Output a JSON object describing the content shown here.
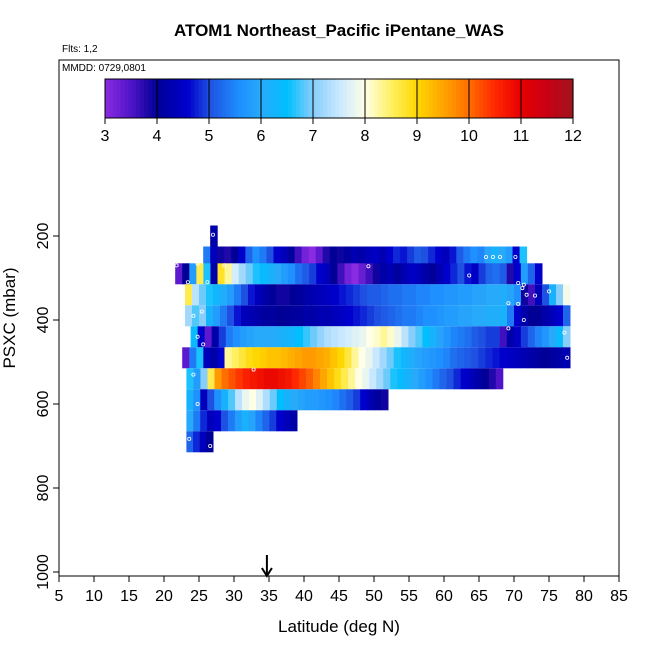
{
  "chart_data": {
    "type": "heatmap",
    "title": "ATOM1 Northeast_Pacific iPentane_WAS",
    "flights_label": "Flts: 1,2",
    "dates_label": "MMDD: 0729,0801",
    "xlabel": "Latitude (deg N)",
    "ylabel": "PSXC (mbar)",
    "xlim": [
      5,
      85
    ],
    "ylim": [
      1000,
      0
    ],
    "x_ticks": [
      5,
      10,
      15,
      20,
      25,
      30,
      35,
      40,
      45,
      50,
      55,
      60,
      65,
      70,
      75,
      80,
      85
    ],
    "y_ticks": [
      200,
      400,
      600,
      800,
      1000
    ],
    "colorbar": {
      "min": 3,
      "max": 12,
      "ticks": [
        3,
        4,
        5,
        6,
        7,
        8,
        9,
        10,
        11,
        12
      ]
    },
    "arrow_latitude": 34.7,
    "layer_height_mbar": 50,
    "rows": [
      {
        "p": 200,
        "x0": 26.6,
        "x1": 27.6,
        "segments": [
          [
            4.2
          ]
        ]
      },
      {
        "p": 250,
        "x0": 25.6,
        "x1": 71.8,
        "segments": [
          [
            5.4,
            4.4,
            3.9,
            3.8,
            4.0,
            4.6,
            5.2,
            5.6,
            5.4,
            5.0,
            4.6,
            4.4,
            4.1,
            3.6,
            3.2,
            3.0,
            3.4,
            3.8,
            4.0,
            3.9,
            4.1,
            4.3,
            4.2,
            4.4,
            4.5,
            4.3,
            4.6,
            4.8,
            4.7,
            4.9,
            5.1,
            5.0,
            4.8,
            4.6,
            4.4,
            4.7,
            5.1,
            5.4,
            5.6,
            5.5,
            5.9,
            6.2,
            6.0,
            5.8,
            4.6,
            6.6
          ]
        ]
      },
      {
        "p": 290,
        "x0": 21.6,
        "x1": 74.0,
        "segments": [
          [
            3.4,
            4.0,
            5.8,
            8.6,
            6.6,
            4.2,
            8.8,
            8.3,
            7.6,
            7.2,
            6.9,
            6.6,
            6.4,
            6.2,
            6.0,
            5.8,
            5.6,
            5.3,
            5.1,
            4.9,
            4.6,
            4.4,
            4.0,
            3.6,
            3.2,
            3.0,
            3.3,
            3.6,
            3.9,
            4.2,
            4.3,
            4.1,
            4.3,
            4.5,
            4.4,
            4.2,
            4.0,
            4.3,
            4.6,
            4.8,
            5.0,
            4.7,
            4.5,
            4.9,
            5.2,
            5.3,
            5.1,
            3.8,
            4.6,
            5.8,
            5.2,
            4.6
          ]
        ]
      },
      {
        "p": 340,
        "x0": 23.0,
        "x1": 78.0,
        "segments": [
          [
            8.6,
            7.4,
            6.9,
            6.6,
            6.3,
            6.1,
            5.8,
            5.4,
            5.0,
            4.7,
            4.4,
            4.2,
            4.0,
            3.9,
            3.9,
            4.0,
            4.1,
            4.2,
            4.3,
            4.4,
            4.5,
            4.6,
            4.7,
            4.8,
            4.9,
            5.0,
            5.1,
            5.1,
            5.2,
            5.3,
            5.3,
            5.4,
            5.4,
            5.5,
            5.5,
            5.6,
            5.6,
            5.7,
            5.7,
            5.8,
            5.8,
            5.9,
            5.9,
            6.0,
            6.0,
            6.1,
            5.9,
            5.6,
            3.9,
            3.6,
            4.4,
            5.0,
            6.2,
            7.0,
            7.9
          ]
        ]
      },
      {
        "p": 390,
        "x0": 23.0,
        "x1": 78.0,
        "segments": [
          [
            7.2,
            6.8,
            7.0,
            6.2,
            5.8,
            5.4,
            5.0,
            4.7,
            4.4,
            4.3,
            4.2,
            4.1,
            4.1,
            4.0,
            4.0,
            4.1,
            4.1,
            4.2,
            4.2,
            4.3,
            4.3,
            4.4,
            4.5,
            4.6,
            4.7,
            4.8,
            4.9,
            5.0,
            5.1,
            5.2,
            5.3,
            5.4,
            5.4,
            5.5,
            5.6,
            5.6,
            5.7,
            5.8,
            5.8,
            5.9,
            5.9,
            6.0,
            6.0,
            6.1,
            6.1,
            6.2,
            5.4,
            4.6,
            4.2,
            4.0,
            4.0,
            4.2,
            4.4,
            4.6,
            5.2
          ]
        ]
      },
      {
        "p": 440,
        "x0": 23.8,
        "x1": 78.0,
        "segments": [
          [
            6.4,
            4.6,
            3.4,
            4.2,
            4.9,
            5.4,
            5.6,
            5.8,
            5.9,
            6.0,
            6.0,
            6.0,
            6.1,
            6.2,
            6.3,
            6.5,
            6.7,
            6.9,
            7.1,
            7.3,
            7.4,
            7.5,
            7.6,
            7.7,
            7.8,
            8.0,
            8.1,
            8.3,
            8.1,
            7.8,
            7.4,
            7.0,
            6.8,
            6.5,
            6.2,
            5.9,
            5.7,
            5.5,
            5.4,
            5.3,
            5.1,
            5.0,
            4.9,
            4.9,
            3.6,
            4.2,
            4.5,
            4.9,
            5.2,
            5.5,
            5.7,
            6.0,
            6.4,
            7.0
          ]
        ]
      },
      {
        "p": 490,
        "x0": 22.6,
        "x1": 78.0,
        "segments": [
          [
            3.4,
            5.4,
            6.6,
            4.4,
            4.2,
            4.6,
            8.3,
            8.5,
            8.7,
            8.9,
            9.0,
            9.1,
            9.2,
            9.2,
            9.3,
            9.4,
            9.5,
            9.6,
            9.6,
            9.5,
            9.4,
            9.2,
            9.0,
            8.7,
            8.3,
            8.0,
            7.8,
            7.5,
            7.2,
            6.9,
            6.6,
            6.3,
            6.1,
            5.9,
            5.8,
            5.7,
            5.6,
            5.5,
            5.3,
            5.2,
            5.1,
            5.0,
            4.9,
            4.8,
            4.7,
            4.6,
            4.5,
            4.4,
            4.3,
            4.2,
            4.1,
            4.0,
            4.1,
            4.2,
            4.3
          ]
        ]
      },
      {
        "p": 540,
        "x0": 23.2,
        "x1": 68.4,
        "segments": [
          [
            6.6,
            5.8,
            7.0,
            8.6,
            9.6,
            10.0,
            10.2,
            10.4,
            10.6,
            10.7,
            10.8,
            10.9,
            10.9,
            10.8,
            10.7,
            10.5,
            10.3,
            10.1,
            9.8,
            9.5,
            9.2,
            8.9,
            8.6,
            8.3,
            8.0,
            7.8,
            7.5,
            7.2,
            6.9,
            6.6,
            6.4,
            6.2,
            6.0,
            5.8,
            5.6,
            5.4,
            5.2,
            5.0,
            4.8,
            4.6,
            4.4,
            4.2,
            4.0,
            3.8,
            3.5
          ]
        ]
      },
      {
        "p": 590,
        "x0": 23.2,
        "x1": 52.0,
        "segments": [
          [
            6.2,
            5.6,
            4.4,
            5.0,
            5.6,
            6.2,
            6.8,
            7.4,
            7.8,
            8.0,
            7.7,
            7.3,
            6.9,
            6.5,
            6.2,
            6.0,
            5.9,
            5.8,
            5.8,
            5.7,
            5.6,
            5.5,
            5.3,
            5.1,
            4.9,
            4.6,
            4.3,
            4.1,
            3.9
          ]
        ]
      },
      {
        "p": 640,
        "x0": 23.2,
        "x1": 39.0,
        "segments": [
          [
            6.0,
            5.4,
            4.8,
            4.4,
            4.6,
            5.0,
            5.4,
            5.8,
            6.2,
            5.9,
            5.5,
            5.2,
            4.9,
            4.6,
            4.4,
            4.2
          ]
        ]
      },
      {
        "p": 690,
        "x0": 23.2,
        "x1": 27.0,
        "segments": [
          [
            5.2,
            4.8,
            4.4,
            4.0
          ]
        ]
      }
    ],
    "sample_points": [
      {
        "lat": 27.0,
        "p": 197
      },
      {
        "lat": 66.0,
        "p": 250
      },
      {
        "lat": 67.0,
        "p": 250
      },
      {
        "lat": 68.0,
        "p": 250
      },
      {
        "lat": 70.2,
        "p": 250
      },
      {
        "lat": 21.8,
        "p": 270
      },
      {
        "lat": 24.8,
        "p": 266
      },
      {
        "lat": 28.6,
        "p": 270
      },
      {
        "lat": 49.2,
        "p": 272
      },
      {
        "lat": 63.6,
        "p": 294
      },
      {
        "lat": 23.4,
        "p": 310
      },
      {
        "lat": 26.2,
        "p": 310
      },
      {
        "lat": 70.6,
        "p": 312
      },
      {
        "lat": 71.4,
        "p": 316
      },
      {
        "lat": 71.2,
        "p": 324
      },
      {
        "lat": 71.8,
        "p": 340
      },
      {
        "lat": 73.0,
        "p": 342
      },
      {
        "lat": 75.0,
        "p": 332
      },
      {
        "lat": 69.2,
        "p": 360
      },
      {
        "lat": 70.6,
        "p": 362
      },
      {
        "lat": 25.4,
        "p": 380
      },
      {
        "lat": 24.2,
        "p": 390
      },
      {
        "lat": 71.4,
        "p": 400
      },
      {
        "lat": 69.2,
        "p": 420
      },
      {
        "lat": 24.8,
        "p": 440
      },
      {
        "lat": 25.6,
        "p": 458
      },
      {
        "lat": 77.2,
        "p": 430
      },
      {
        "lat": 77.6,
        "p": 490
      },
      {
        "lat": 32.8,
        "p": 518
      },
      {
        "lat": 24.2,
        "p": 530
      },
      {
        "lat": 24.8,
        "p": 600
      },
      {
        "lat": 23.6,
        "p": 683
      },
      {
        "lat": 26.6,
        "p": 700
      }
    ]
  }
}
